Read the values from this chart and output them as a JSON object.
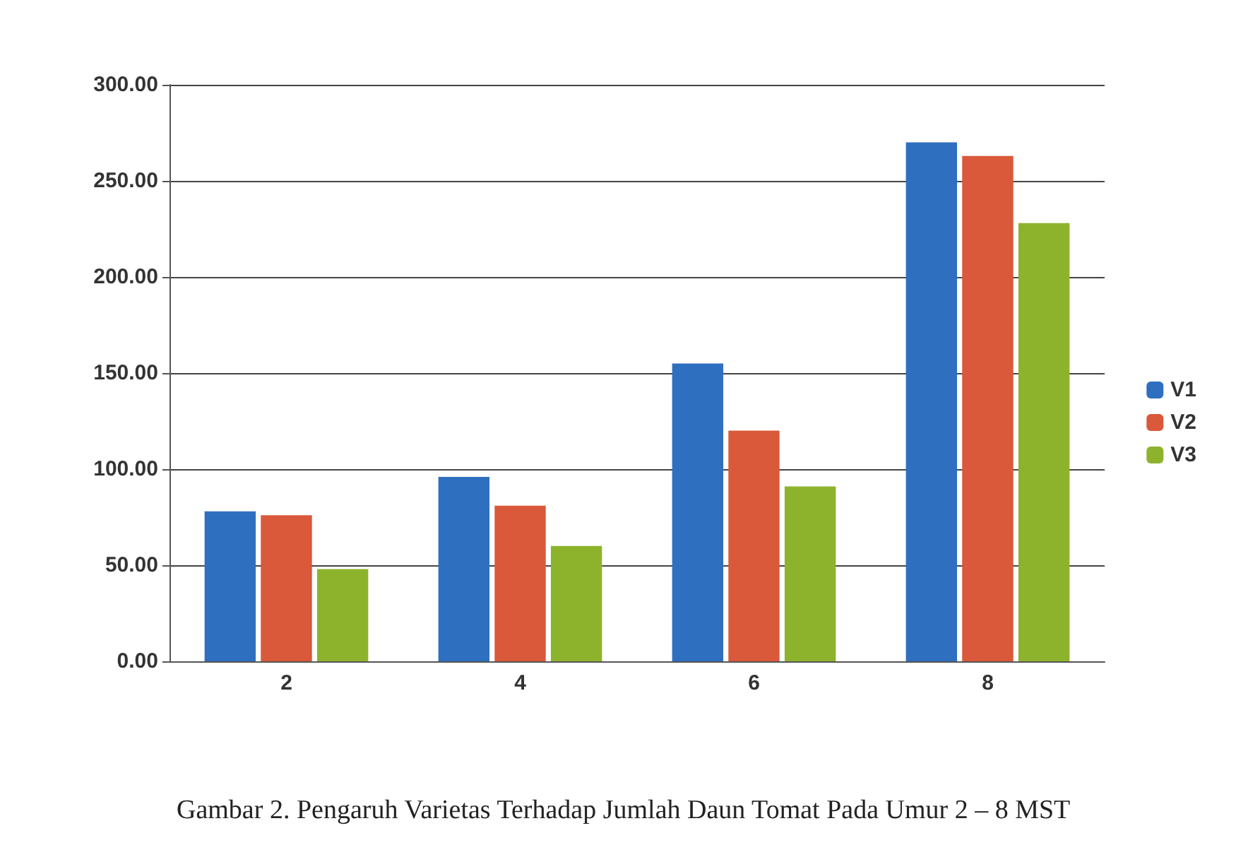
{
  "chart_data": {
    "type": "bar",
    "title": "Gambar 2. Pengaruh Varietas Terhadap Jumlah Daun Tomat Pada Umur 2 – 8 MST",
    "categories": [
      "2",
      "4",
      "6",
      "8"
    ],
    "series": [
      {
        "name": "V1",
        "color": "#2e6fc0",
        "values": [
          78,
          96,
          155,
          270
        ]
      },
      {
        "name": "V2",
        "color": "#d9593a",
        "values": [
          76,
          81,
          120,
          263
        ]
      },
      {
        "name": "V3",
        "color": "#8db32c",
        "values": [
          48,
          60,
          91,
          228
        ]
      }
    ],
    "ylim": [
      0,
      300
    ],
    "yticks": [
      {
        "value": 0,
        "label": "0.00"
      },
      {
        "value": 50,
        "label": "50.00"
      },
      {
        "value": 100,
        "label": "100.00"
      },
      {
        "value": 150,
        "label": "150.00"
      },
      {
        "value": 200,
        "label": "200.00"
      },
      {
        "value": 250,
        "label": "250.00"
      },
      {
        "value": 300,
        "label": "300.00"
      }
    ],
    "grid": "y",
    "legend": "right"
  }
}
